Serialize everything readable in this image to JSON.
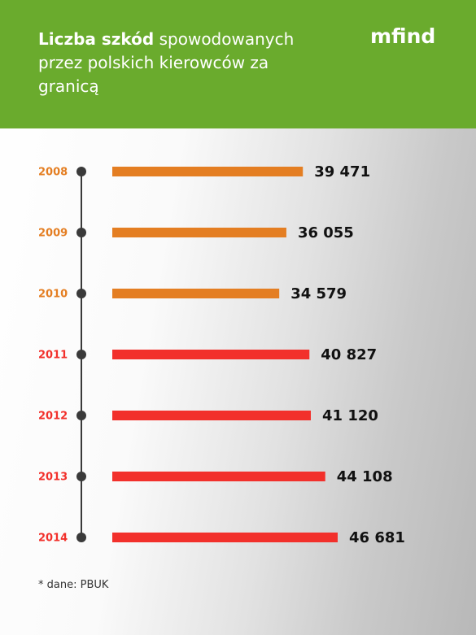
{
  "chart_data": {
    "type": "barh",
    "title_parts": [
      "Liczba szkód",
      "spowodowanych przez polskich kierowców za granicą"
    ],
    "logo": "mfind",
    "source": "* dane: PBUK",
    "categories": [
      "2008",
      "2009",
      "2010",
      "2011",
      "2012",
      "2013",
      "2014"
    ],
    "values": [
      39471,
      36055,
      34579,
      40827,
      41120,
      44108,
      46681
    ],
    "value_labels": [
      "39 471",
      "36 055",
      "34 579",
      "40 827",
      "41 120",
      "44 108",
      "46 681"
    ],
    "colors": [
      "#e47e22",
      "#e47e22",
      "#e47e22",
      "#f2302b",
      "#f2302b",
      "#f2302b",
      "#f2302b"
    ]
  }
}
